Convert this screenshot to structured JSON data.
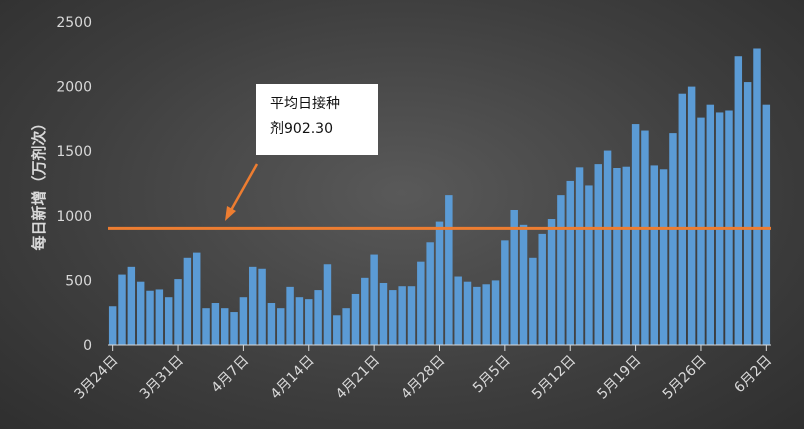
{
  "chart_data": {
    "type": "bar",
    "ylabel": "每日新增（万剂次）",
    "ylim": [
      0,
      2500
    ],
    "yticks": [
      0,
      500,
      1000,
      1500,
      2000,
      2500
    ],
    "xtick_labels": [
      "3月24日",
      "3月31日",
      "4月7日",
      "4月14日",
      "4月21日",
      "4月28日",
      "5月5日",
      "5月12日",
      "5月19日",
      "5月26日",
      "6月2日"
    ],
    "xtick_index": [
      0,
      7,
      14,
      21,
      28,
      35,
      42,
      49,
      56,
      63,
      70
    ],
    "values": [
      300,
      545,
      605,
      490,
      420,
      430,
      370,
      510,
      675,
      715,
      285,
      325,
      285,
      255,
      370,
      605,
      590,
      325,
      285,
      450,
      370,
      355,
      425,
      625,
      230,
      285,
      395,
      520,
      700,
      480,
      425,
      455,
      455,
      645,
      795,
      955,
      1160,
      530,
      490,
      450,
      470,
      500,
      810,
      1045,
      930,
      675,
      860,
      975,
      1160,
      1270,
      1375,
      1235,
      1400,
      1505,
      1370,
      1380,
      1710,
      1660,
      1390,
      1360,
      1640,
      1945,
      2000,
      1760,
      1860,
      1800,
      1815,
      2235,
      2035,
      2295,
      1860
    ],
    "reference_line": {
      "value": 902.3,
      "label": "平均日接种剂902.30"
    },
    "colors": {
      "bar": "#5b9bd5",
      "line": "#ed7d31",
      "axis": "#d9d9d9",
      "annotation_bg": "#ffffff"
    }
  }
}
